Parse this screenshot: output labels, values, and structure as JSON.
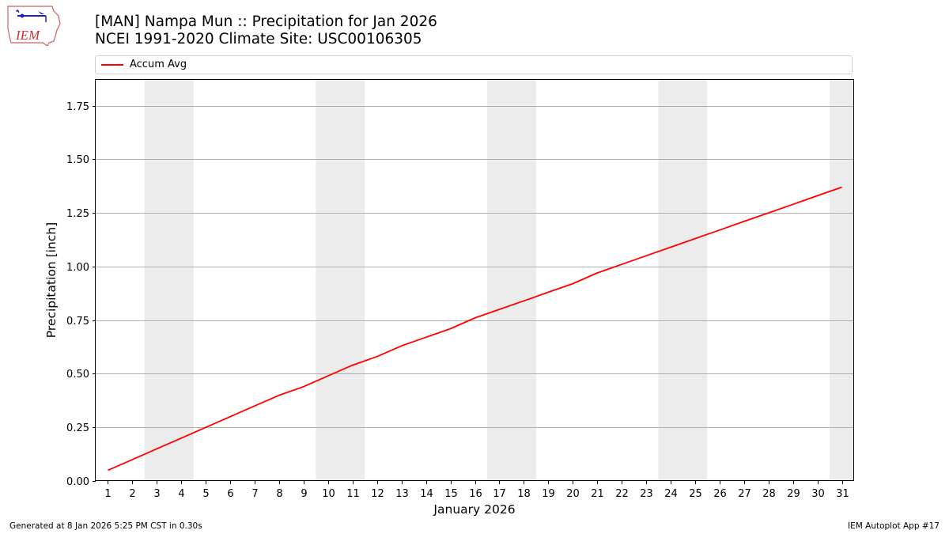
{
  "header": {
    "title_line1": "[MAN] Nampa Mun :: Precipitation for Jan 2026",
    "title_line2": "NCEI 1991-2020 Climate Site: USC00106305",
    "logo_text": "IEM"
  },
  "legend": {
    "items": [
      {
        "label": "Accum Avg",
        "color": "#ff0000"
      }
    ]
  },
  "footer": {
    "generated": "Generated at 8 Jan 2026 5:25 PM CST in 0.30s",
    "app": "IEM Autoplot App #17"
  },
  "colors": {
    "line": "#ff0000",
    "weekend_band": "#ececec",
    "grid": "#b0b0b0"
  },
  "chart_data": {
    "type": "line",
    "title": "[MAN] Nampa Mun :: Precipitation for Jan 2026\nNCEI 1991-2020 Climate Site: USC00106305",
    "xlabel": "January 2026",
    "ylabel": "Precipitation [inch]",
    "x": [
      1,
      2,
      3,
      4,
      5,
      6,
      7,
      8,
      9,
      10,
      11,
      12,
      13,
      14,
      15,
      16,
      17,
      18,
      19,
      20,
      21,
      22,
      23,
      24,
      25,
      26,
      27,
      28,
      29,
      30,
      31
    ],
    "series": [
      {
        "name": "Accum Avg",
        "color": "#ff0000",
        "values": [
          0.05,
          0.1,
          0.15,
          0.2,
          0.25,
          0.3,
          0.35,
          0.4,
          0.44,
          0.49,
          0.54,
          0.58,
          0.63,
          0.67,
          0.71,
          0.76,
          0.8,
          0.84,
          0.88,
          0.92,
          0.97,
          1.01,
          1.05,
          1.09,
          1.13,
          1.17,
          1.21,
          1.25,
          1.29,
          1.33,
          1.37
        ]
      }
    ],
    "ylim": [
      0,
      1.87
    ],
    "xlim": [
      0.5,
      31.5
    ],
    "yticks": [
      0.0,
      0.25,
      0.5,
      0.75,
      1.0,
      1.25,
      1.5,
      1.75
    ],
    "ytick_labels": [
      "0.00",
      "0.25",
      "0.50",
      "0.75",
      "1.00",
      "1.25",
      "1.50",
      "1.75"
    ],
    "xtick_labels": [
      "1",
      "2",
      "3",
      "4",
      "5",
      "6",
      "7",
      "8",
      "9",
      "10",
      "11",
      "12",
      "13",
      "14",
      "15",
      "16",
      "17",
      "18",
      "19",
      "20",
      "21",
      "22",
      "23",
      "24",
      "25",
      "26",
      "27",
      "28",
      "29",
      "30",
      "31"
    ],
    "weekend_bands": [
      [
        3,
        4
      ],
      [
        10,
        11
      ],
      [
        17,
        18
      ],
      [
        24,
        25
      ],
      [
        31,
        31
      ]
    ],
    "grid": "y",
    "legend_position": "top, above plot"
  }
}
